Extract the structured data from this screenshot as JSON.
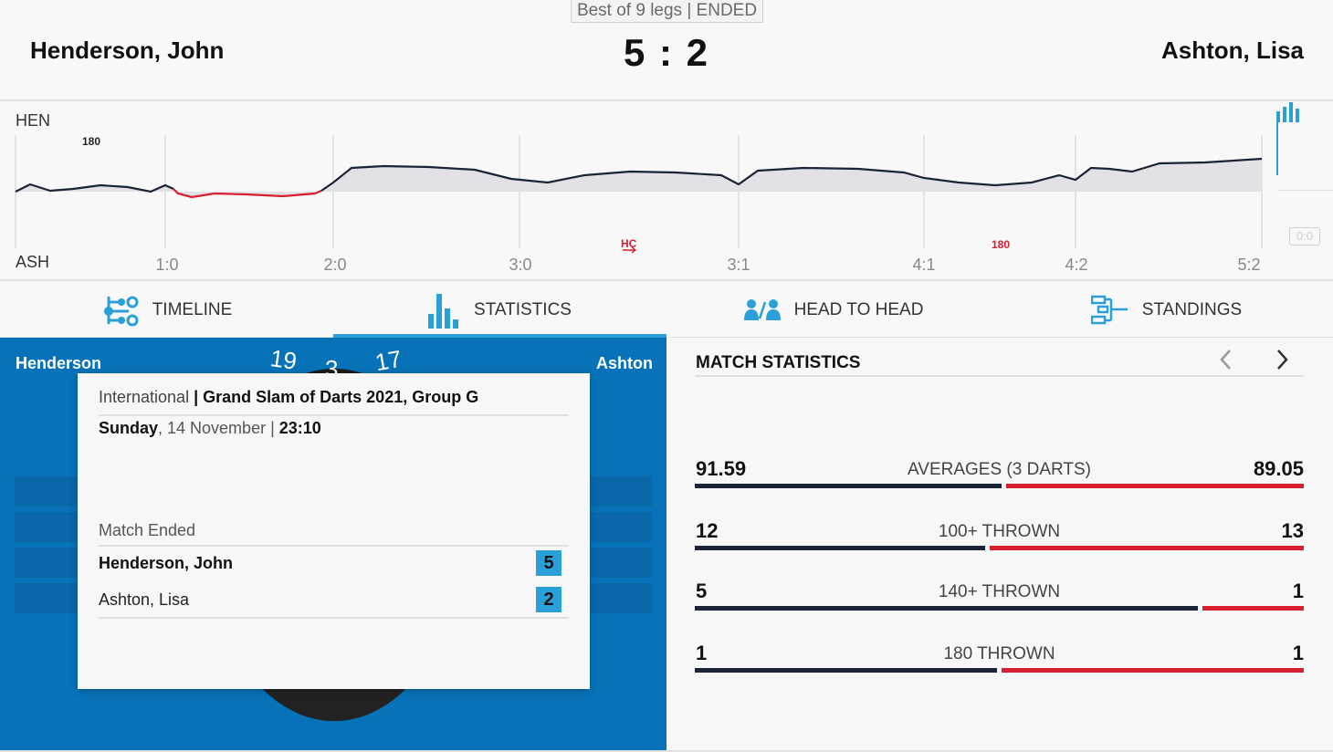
{
  "header": {
    "format": "Best of 9 legs | ENDED",
    "home_player": "Henderson, John",
    "away_player": "Ashton, Lisa",
    "score": "5 : 2"
  },
  "momentum": {
    "home_abbr": "HEN",
    "away_abbr": "ASH",
    "leg_labels": [
      "1:0",
      "2:0",
      "3:0",
      "3:1",
      "4:1",
      "4:2",
      "5:2"
    ],
    "markers": [
      {
        "text": "180",
        "side": "home"
      },
      {
        "text": "HC",
        "side": "away"
      },
      {
        "text": "180",
        "side": "away"
      }
    ],
    "reset_label": "0:0",
    "colors": {
      "home_line": "#1b2336",
      "away_line": "#d61e2e",
      "fill": "#e2e2e6",
      "accent": "#2a9fd8"
    }
  },
  "tabs": [
    {
      "label": "TIMELINE",
      "icon": "timeline-icon"
    },
    {
      "label": "STATISTICS",
      "icon": "statistics-icon",
      "active": true
    },
    {
      "label": "HEAD TO HEAD",
      "icon": "head-to-head-icon"
    },
    {
      "label": "STANDINGS",
      "icon": "standings-icon"
    }
  ],
  "left_panel": {
    "home_short": "Henderson",
    "away_short": "Ashton",
    "board_numbers": [
      "19",
      "3",
      "17"
    ]
  },
  "match_card": {
    "category": "International",
    "separator": " | ",
    "tournament": "Grand Slam of Darts 2021, Group G",
    "day": "Sunday",
    "date": ", 14 November | ",
    "time": "23:10",
    "status": "Match Ended",
    "rows": [
      {
        "name": "Henderson, John",
        "score": "5",
        "winner": true
      },
      {
        "name": "Ashton, Lisa",
        "score": "2",
        "winner": false
      }
    ]
  },
  "stats": {
    "title": "MATCH STATISTICS",
    "items": [
      {
        "label": "AVERAGES (3 DARTS)",
        "home": "91.59",
        "away": "89.05",
        "home_share": 0.507
      },
      {
        "label": "100+ THROWN",
        "home": "12",
        "away": "13",
        "home_share": 0.48
      },
      {
        "label": "140+ THROWN",
        "home": "5",
        "away": "1",
        "home_share": 0.833
      },
      {
        "label": "180 THROWN",
        "home": "1",
        "away": "1",
        "home_share": 0.5
      }
    ]
  }
}
